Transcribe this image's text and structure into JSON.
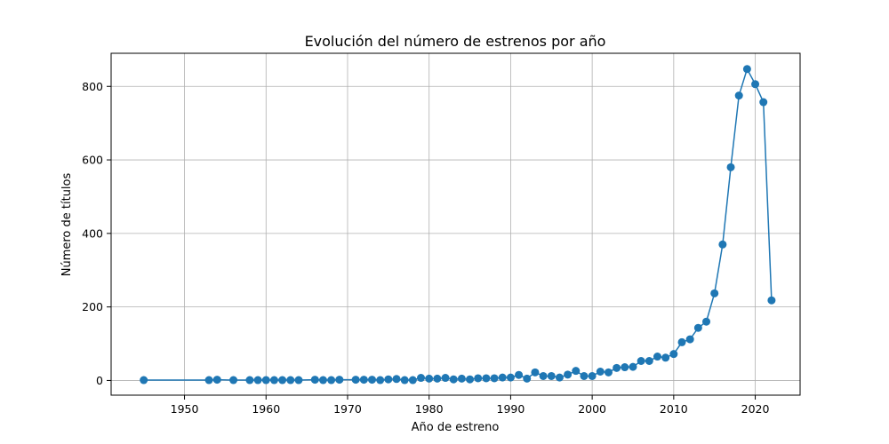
{
  "chart_data": {
    "type": "line",
    "title": "Evolución del número de estrenos por año",
    "xlabel": "Año de estreno",
    "ylabel": "Número de títulos",
    "xlim": [
      1941,
      2025.5
    ],
    "ylim": [
      -40,
      890
    ],
    "xticks": [
      1950,
      1960,
      1970,
      1980,
      1990,
      2000,
      2010,
      2020
    ],
    "yticks": [
      0,
      200,
      400,
      600,
      800
    ],
    "grid": true,
    "color": "#1f77b4",
    "marker": "circle",
    "x": [
      1945,
      1953,
      1954,
      1956,
      1958,
      1959,
      1960,
      1961,
      1962,
      1963,
      1964,
      1966,
      1967,
      1968,
      1969,
      1971,
      1972,
      1973,
      1974,
      1975,
      1976,
      1977,
      1978,
      1979,
      1980,
      1981,
      1982,
      1983,
      1984,
      1985,
      1986,
      1987,
      1988,
      1989,
      1990,
      1991,
      1992,
      1993,
      1994,
      1995,
      1996,
      1997,
      1998,
      1999,
      2000,
      2001,
      2002,
      2003,
      2004,
      2005,
      2006,
      2007,
      2008,
      2009,
      2010,
      2011,
      2012,
      2013,
      2014,
      2015,
      2016,
      2017,
      2018,
      2019,
      2020,
      2021,
      2022
    ],
    "y": [
      1,
      1,
      2,
      1,
      1,
      1,
      1,
      1,
      1,
      1,
      1,
      2,
      1,
      1,
      2,
      2,
      2,
      2,
      1,
      3,
      4,
      1,
      1,
      7,
      5,
      5,
      7,
      3,
      5,
      3,
      6,
      6,
      6,
      8,
      8,
      15,
      5,
      22,
      12,
      12,
      8,
      16,
      26,
      12,
      12,
      24,
      22,
      34,
      36,
      37,
      53,
      53,
      65,
      62,
      72,
      104,
      112,
      143,
      160,
      237,
      370,
      580,
      775,
      847,
      806,
      757,
      218
    ]
  }
}
